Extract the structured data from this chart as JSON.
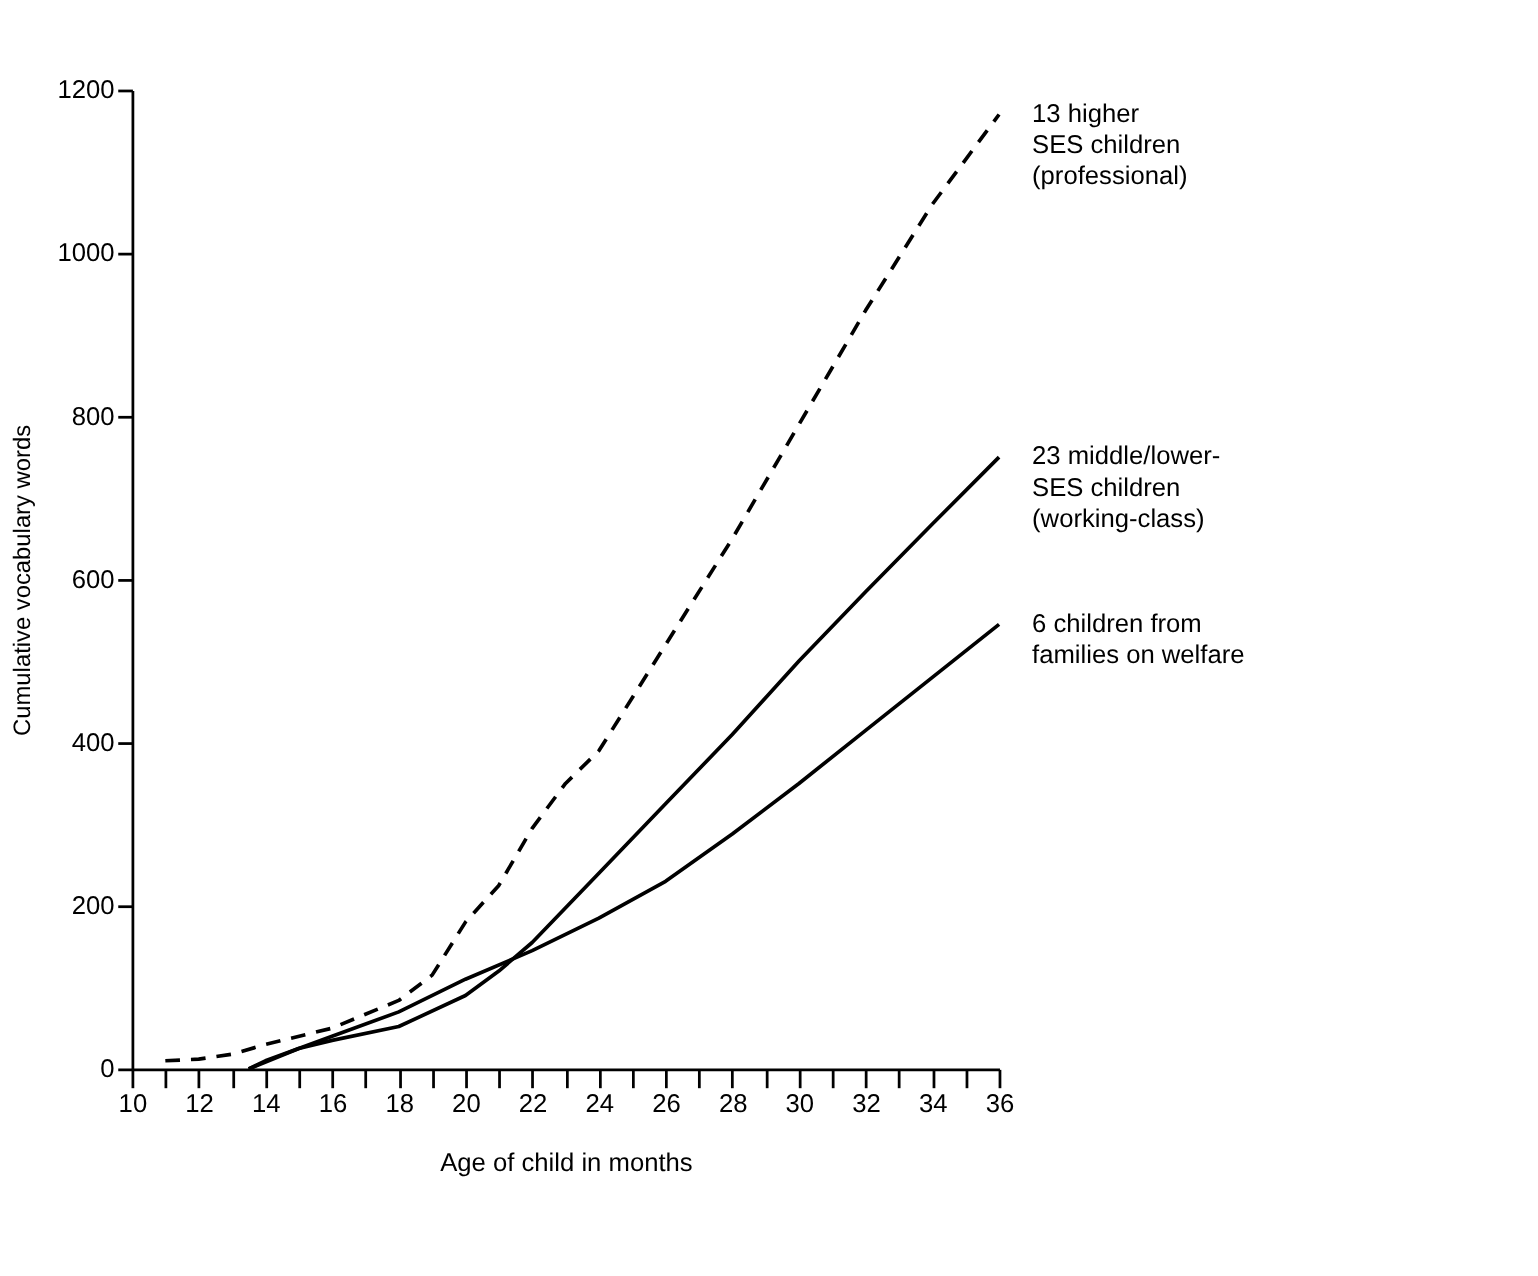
{
  "chart_data": {
    "type": "line",
    "xlabel": "Age of child in months",
    "ylabel": "Cumulative vocabulary words",
    "xlim": [
      10,
      36
    ],
    "ylim": [
      0,
      1200
    ],
    "xticks": [
      10,
      {
        "value": 11,
        "label": null
      },
      12,
      {
        "value": 13,
        "label": null
      },
      14,
      {
        "value": 15,
        "label": null
      },
      16,
      {
        "value": 17,
        "label": null
      },
      18,
      {
        "value": 19,
        "label": null
      },
      20,
      {
        "value": 21,
        "label": null
      },
      22,
      {
        "value": 23,
        "label": null
      },
      24,
      {
        "value": 25,
        "label": null
      },
      26,
      {
        "value": 27,
        "label": null
      },
      28,
      {
        "value": 29,
        "label": null
      },
      30,
      {
        "value": 31,
        "label": null
      },
      32,
      {
        "value": 33,
        "label": null
      },
      34,
      {
        "value": 35,
        "label": null
      },
      36
    ],
    "yticks": [
      0,
      200,
      400,
      600,
      800,
      1000,
      1200
    ],
    "grid": false,
    "marker": "none",
    "series": [
      {
        "name": "13 higher\nSES children\n(professional)",
        "color": "#000000",
        "line_style": "dashed",
        "x": [
          11,
          12,
          13,
          14,
          16,
          18,
          19,
          20,
          21,
          22,
          23,
          24,
          26,
          28,
          30,
          32,
          34,
          36
        ],
        "values": [
          10,
          12,
          18,
          30,
          50,
          84,
          115,
          180,
          225,
          295,
          350,
          390,
          520,
          650,
          790,
          930,
          1060,
          1170
        ]
      },
      {
        "name": "23 middle/lower-\nSES children\n(working-class)",
        "color": "#000000",
        "line_style": "solid",
        "x": [
          13.5,
          15,
          16,
          18,
          20,
          21,
          22,
          24,
          26,
          28,
          30,
          32,
          34,
          36
        ],
        "values": [
          0,
          25,
          35,
          52,
          90,
          120,
          155,
          240,
          325,
          410,
          500,
          585,
          668,
          750
        ]
      },
      {
        "name": "6 children from\nfamilies on welfare",
        "color": "#000000",
        "line_style": "solid",
        "x": [
          13.5,
          14,
          16,
          18,
          20,
          22,
          24,
          26,
          28,
          30,
          32,
          34,
          36
        ],
        "values": [
          0,
          10,
          40,
          70,
          110,
          145,
          185,
          230,
          288,
          350,
          415,
          480,
          545
        ]
      }
    ]
  }
}
